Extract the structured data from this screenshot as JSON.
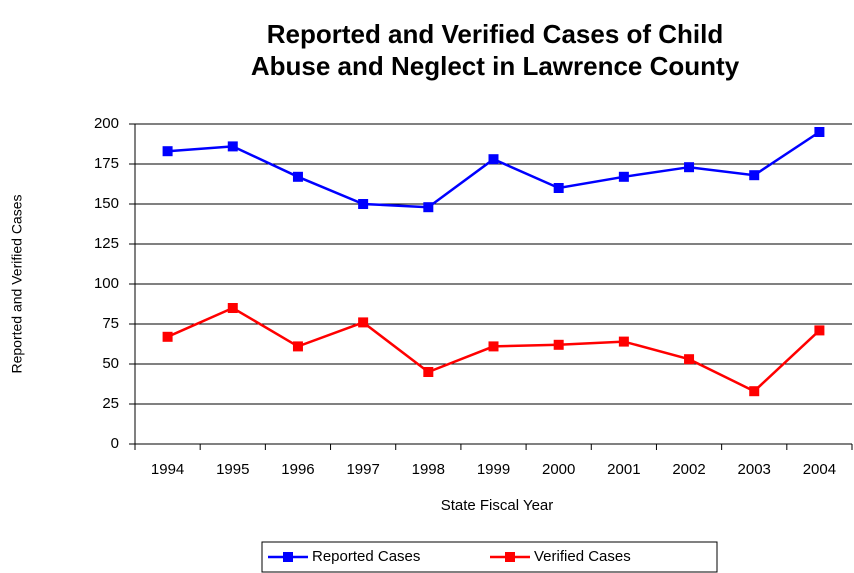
{
  "chart_data": {
    "type": "line",
    "title": [
      "Reported and Verified Cases of Child",
      "Abuse and Neglect in Lawrence County"
    ],
    "x_label": "State Fiscal Year",
    "y_label": "Reported and Verified Cases",
    "categories": [
      "1994",
      "1995",
      "1996",
      "1997",
      "1998",
      "1999",
      "2000",
      "2001",
      "2002",
      "2003",
      "2004"
    ],
    "series": [
      {
        "name": "Reported Cases",
        "color": "#0000ff",
        "values": [
          183,
          186,
          167,
          150,
          148,
          178,
          160,
          167,
          173,
          168,
          195
        ]
      },
      {
        "name": "Verified Cases",
        "color": "#ff0000",
        "values": [
          67,
          85,
          61,
          76,
          45,
          61,
          62,
          64,
          53,
          33,
          71
        ]
      }
    ],
    "ylim": [
      0,
      200
    ],
    "yticks": [
      0,
      25,
      50,
      75,
      100,
      125,
      150,
      175,
      200
    ],
    "grid": true,
    "legend": "bottom"
  }
}
